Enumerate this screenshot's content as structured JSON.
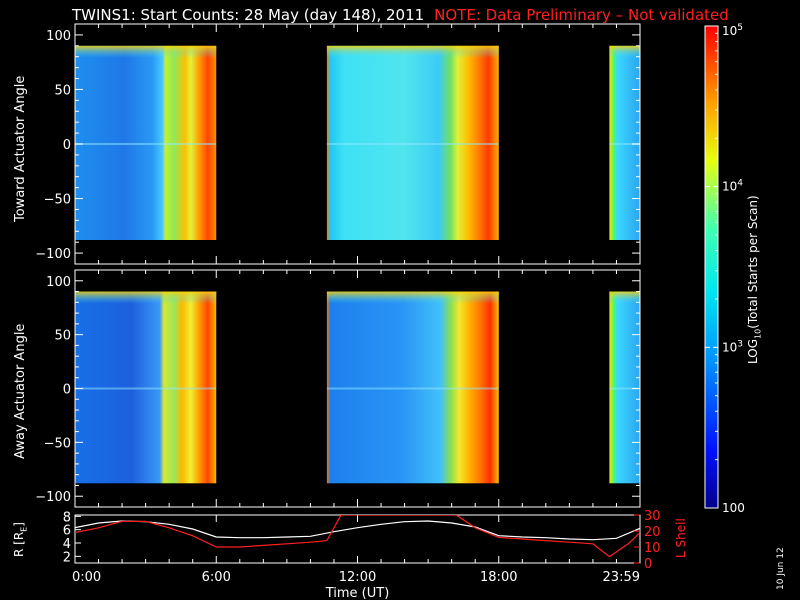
{
  "title": "TWINS1: Start Counts: 28 May (day 148), 2011",
  "note": "NOTE: Data Preliminary – Not validated",
  "date_stamp": "10 Jun 12",
  "colorbar": {
    "label": "LOG10(Total Starts per Scan)",
    "label_main": "LOG",
    "label_sub": "10",
    "label_rest": "(Total Starts per Scan)",
    "ticks": [
      {
        "value": 100000,
        "base": "10",
        "exp": "5"
      },
      {
        "value": 10000,
        "base": "10",
        "exp": "4"
      },
      {
        "value": 1000,
        "base": "10",
        "exp": "3"
      },
      {
        "value": 100,
        "base": "100",
        "exp": ""
      }
    ]
  },
  "chart_data": [
    {
      "type": "heatmap",
      "panel": "toward",
      "ylabel": "Toward Actuator Angle",
      "ylim": [
        -110,
        110
      ],
      "yticks": [
        "100",
        "50",
        "0",
        "−50",
        "−100"
      ],
      "ytick_values": [
        100,
        50,
        0,
        -50,
        -100
      ],
      "xlim_hours": [
        0,
        24
      ],
      "data_coverage_hours": [
        [
          0,
          6
        ],
        [
          10.7,
          18
        ],
        [
          22.7,
          24
        ]
      ],
      "angle_range": [
        -88,
        90
      ],
      "value_scale": "log10 total starts per scan, 100 to 100000"
    },
    {
      "type": "heatmap",
      "panel": "away",
      "ylabel": "Away Actuator Angle",
      "ylim": [
        -110,
        110
      ],
      "yticks": [
        "100",
        "50",
        "0",
        "−50",
        "−100"
      ],
      "ytick_values": [
        100,
        50,
        0,
        -50,
        -100
      ],
      "xlim_hours": [
        0,
        24
      ],
      "data_coverage_hours": [
        [
          0,
          6
        ],
        [
          10.7,
          18
        ],
        [
          22.7,
          24
        ]
      ],
      "angle_range": [
        -88,
        90
      ],
      "value_scale": "log10 total starts per scan, 100 to 100000"
    },
    {
      "type": "line",
      "panel": "orbit",
      "xlabel": "Time (UT)",
      "xticks": [
        "0:00",
        "6:00",
        "12:00",
        "18:00",
        "23:59"
      ],
      "xtick_hours": [
        0,
        6,
        12,
        18,
        24
      ],
      "ylabel_left": "R [R",
      "ylabel_left_sub": "E",
      "ylabel_left_end": "]",
      "ylabel_right": "L Shell",
      "yticks_left": [
        "8",
        "6",
        "4",
        "2"
      ],
      "ytick_left_values": [
        8,
        6,
        4,
        2
      ],
      "ylim_left": [
        1,
        8.2
      ],
      "yticks_right": [
        "30",
        "20",
        "10",
        "0"
      ],
      "ytick_right_values": [
        30,
        20,
        10,
        0
      ],
      "ylim_right": [
        0,
        30
      ],
      "series": [
        {
          "name": "R [RE]",
          "color": "#ffffff",
          "axis": "left",
          "x": [
            0,
            1,
            2,
            3,
            4,
            5,
            6,
            7,
            8,
            9,
            10,
            11,
            12,
            13,
            14,
            15,
            16,
            17,
            18,
            19,
            20,
            21,
            22,
            23,
            24
          ],
          "y": [
            6.3,
            7.0,
            7.3,
            7.2,
            6.8,
            6.1,
            4.9,
            4.8,
            4.8,
            4.9,
            5.0,
            5.7,
            6.3,
            6.8,
            7.2,
            7.3,
            7.0,
            6.4,
            5.1,
            4.9,
            4.8,
            4.6,
            4.5,
            4.7,
            6.2
          ]
        },
        {
          "name": "L Shell",
          "color": "#ff2020",
          "axis": "right",
          "x": [
            0,
            1,
            2,
            3,
            4,
            5,
            6,
            7,
            8,
            9,
            10,
            10.7,
            11.3,
            16.2,
            17,
            18,
            19,
            20,
            21,
            22,
            22.7,
            23.5,
            24
          ],
          "y": [
            19,
            22,
            26,
            26,
            22,
            17,
            10,
            10,
            11,
            12,
            13,
            14,
            30,
            30,
            22,
            16,
            15,
            14,
            13,
            12,
            4,
            12,
            19
          ]
        }
      ]
    }
  ]
}
